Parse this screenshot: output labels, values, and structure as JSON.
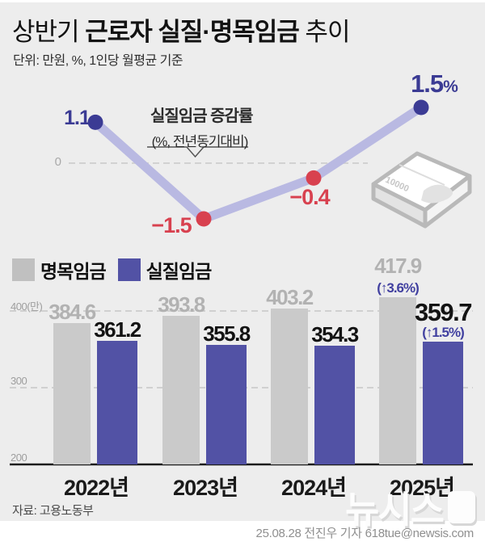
{
  "header": {
    "title_prefix": "상반기 ",
    "title_strong": "근로자 실질·명목임금",
    "title_suffix": " 추이",
    "subtitle": "단위: 만원, %, 1인당 월평균 기준"
  },
  "legend": {
    "items": [
      {
        "label": "명목임금",
        "color": "#c0c0c0"
      },
      {
        "label": "실질임금",
        "color": "#5252a5"
      }
    ]
  },
  "chart_data": [
    {
      "type": "line",
      "name": "real-wage-growth-rate",
      "title": "실질임금 증감률",
      "subtitle": "(%, 전년동기대비)",
      "x": [
        "2022",
        "2023",
        "2024",
        "2025"
      ],
      "values": [
        1.1,
        -1.5,
        -0.4,
        1.5
      ],
      "labels": [
        "1.1",
        "−1.5",
        "−0.4",
        "1.5%"
      ],
      "zero_label": "0",
      "ylim": [
        -2,
        2
      ],
      "line_color": "#b9b9e2",
      "positive_color": "#3b3b94",
      "negative_color": "#d8414f",
      "grid": "zero-dashed"
    },
    {
      "type": "bar",
      "name": "nominal-vs-real-wage",
      "categories": [
        "2022년",
        "2023년",
        "2024년",
        "2025년"
      ],
      "series": [
        {
          "name": "명목임금",
          "color": "#cacaca",
          "label_color": "#b2b2b2",
          "values": [
            384.6,
            393.8,
            403.2,
            417.9
          ],
          "extra_labels": [
            null,
            null,
            null,
            "(↑3.6%)"
          ]
        },
        {
          "name": "실질임금",
          "color": "#5252a5",
          "label_color": "#131313",
          "values": [
            361.2,
            355.8,
            354.3,
            359.7
          ],
          "extra_labels": [
            null,
            null,
            null,
            "(↑1.5%)"
          ]
        }
      ],
      "ylim": [
        200,
        430
      ],
      "y_ticks": [
        {
          "label": "400(만)",
          "value": 400,
          "style": "dashed"
        },
        {
          "label": "300",
          "value": 300,
          "style": "dashed"
        },
        {
          "label": "200",
          "value": 200,
          "style": "solid-baseline"
        }
      ],
      "unit": "만원",
      "legend_position": "top-left"
    }
  ],
  "icons": {
    "money_stack_label": "10000"
  },
  "footer": {
    "source": "자료: 고용노동부",
    "credit": "25.08.28 전진우 기자 618tue@newsis.com",
    "watermark": "뉴시스"
  }
}
